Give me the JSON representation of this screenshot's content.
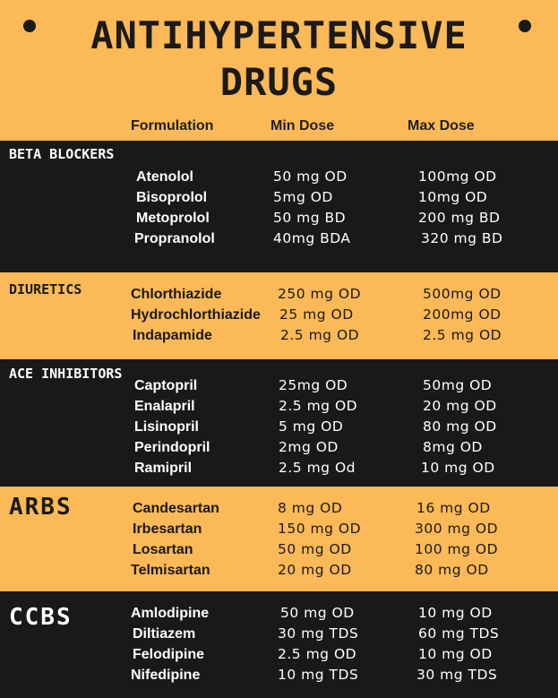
{
  "title": {
    "line1": "ANTIHYPERTENSIVE",
    "line2": "DRUGS"
  },
  "headers": {
    "formulation": "Formulation",
    "min_dose": "Min Dose",
    "max_dose": "Max Dose"
  },
  "colors": {
    "background": "#fbb957",
    "dark_band": "#1a1818",
    "dark_text": "#1b1a1a",
    "light_text": "#ffffff"
  },
  "sections": [
    {
      "name": "BETA BLOCKERS",
      "drugs": [
        {
          "name": "Atenolol",
          "min": "50 mg OD",
          "max": "100mg OD"
        },
        {
          "name": "Bisoprolol",
          "min": "5mg OD",
          "max": "10mg OD"
        },
        {
          "name": "Metoprolol",
          "min": "50 mg BD",
          "max": "200 mg BD"
        },
        {
          "name": "Propranolol",
          "min": "40mg BDA",
          "max": "320 mg BD"
        }
      ]
    },
    {
      "name": "DIURETICS",
      "drugs": [
        {
          "name": "Chlorthiazide",
          "min": "250 mg OD",
          "max": "500mg OD"
        },
        {
          "name": "Hydrochlorthiazide",
          "min": "25 mg OD",
          "max": "200mg OD"
        },
        {
          "name": "Indapamide",
          "min": "2.5 mg OD",
          "max": "2.5 mg OD"
        }
      ]
    },
    {
      "name": "ACE INHIBITORS",
      "drugs": [
        {
          "name": "Captopril",
          "min": "25mg OD",
          "max": "50mg OD"
        },
        {
          "name": "Enalapril",
          "min": "2.5 mg OD",
          "max": "20 mg OD"
        },
        {
          "name": "Lisinopril",
          "min": "5 mg OD",
          "max": "80 mg OD"
        },
        {
          "name": "Perindopril",
          "min": "2mg OD",
          "max": "8mg OD"
        },
        {
          "name": "Ramipril",
          "min": "2.5 mg Od",
          "max": "10 mg OD"
        }
      ]
    },
    {
      "name": "ARBS",
      "drugs": [
        {
          "name": "Candesartan",
          "min": "8 mg OD",
          "max": "16 mg OD"
        },
        {
          "name": "Irbesartan",
          "min": "150 mg OD",
          "max": "300 mg OD"
        },
        {
          "name": "Losartan",
          "min": "50 mg OD",
          "max": "100 mg OD"
        },
        {
          "name": "Telmisartan",
          "min": "20 mg OD",
          "max": "80 mg OD"
        }
      ]
    },
    {
      "name": "CCBS",
      "drugs": [
        {
          "name": "Amlodipine",
          "min": "50 mg OD",
          "max": "10 mg OD"
        },
        {
          "name": "Diltiazem",
          "min": "30 mg TDS",
          "max": "60 mg TDS"
        },
        {
          "name": "Felodipine",
          "min": "2.5 mg OD",
          "max": "10 mg OD"
        },
        {
          "name": "Nifedipine",
          "min": "10 mg TDS",
          "max": "30 mg TDS"
        }
      ]
    }
  ]
}
